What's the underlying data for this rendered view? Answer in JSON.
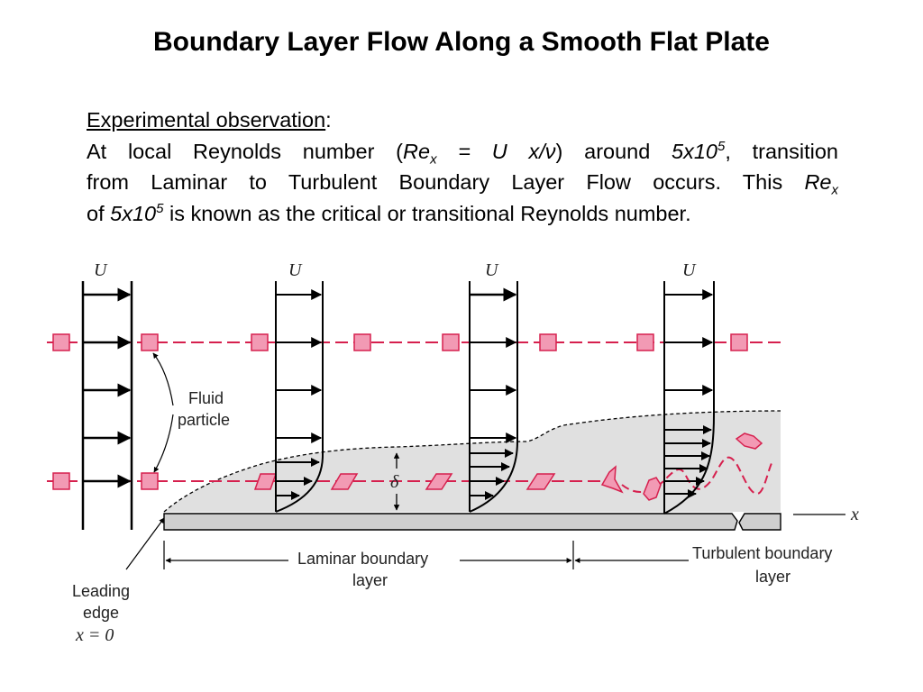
{
  "title": "Boundary Layer Flow Along a Smooth Flat Plate",
  "observation": {
    "heading": "Experimental observation",
    "heading_colon": ":",
    "l1_a": "At local Reynolds number (",
    "re": "Re",
    "sub_x": "x",
    "eq": " = U x/",
    "nu": "ν",
    "l1_b": ") around ",
    "crit_base": "5x10",
    "crit_exp": "5",
    "l1_c": ", transition",
    "l2_a": "from Laminar to Turbulent Boundary Layer Flow occurs.  This ",
    "l3_a": "of ",
    "l3_b": " is known as the critical or transitional Reynolds number."
  },
  "diagram": {
    "velocity_label": "U",
    "fluid_particle_label": [
      "Fluid",
      "particle"
    ],
    "delta_label": "δ",
    "x_axis_label": "x",
    "laminar_label": [
      "Laminar boundary",
      "layer"
    ],
    "turbulent_label": [
      "Turbulent boundary",
      "layer"
    ],
    "leading_edge_label": [
      "Leading",
      "edge",
      "x = 0"
    ],
    "colors": {
      "particle_line": "#d6204e",
      "particle_fill": "#f29ab4",
      "boundary_layer_fill": "#e0e0e0",
      "plate_fill": "#cfcfcf"
    }
  }
}
